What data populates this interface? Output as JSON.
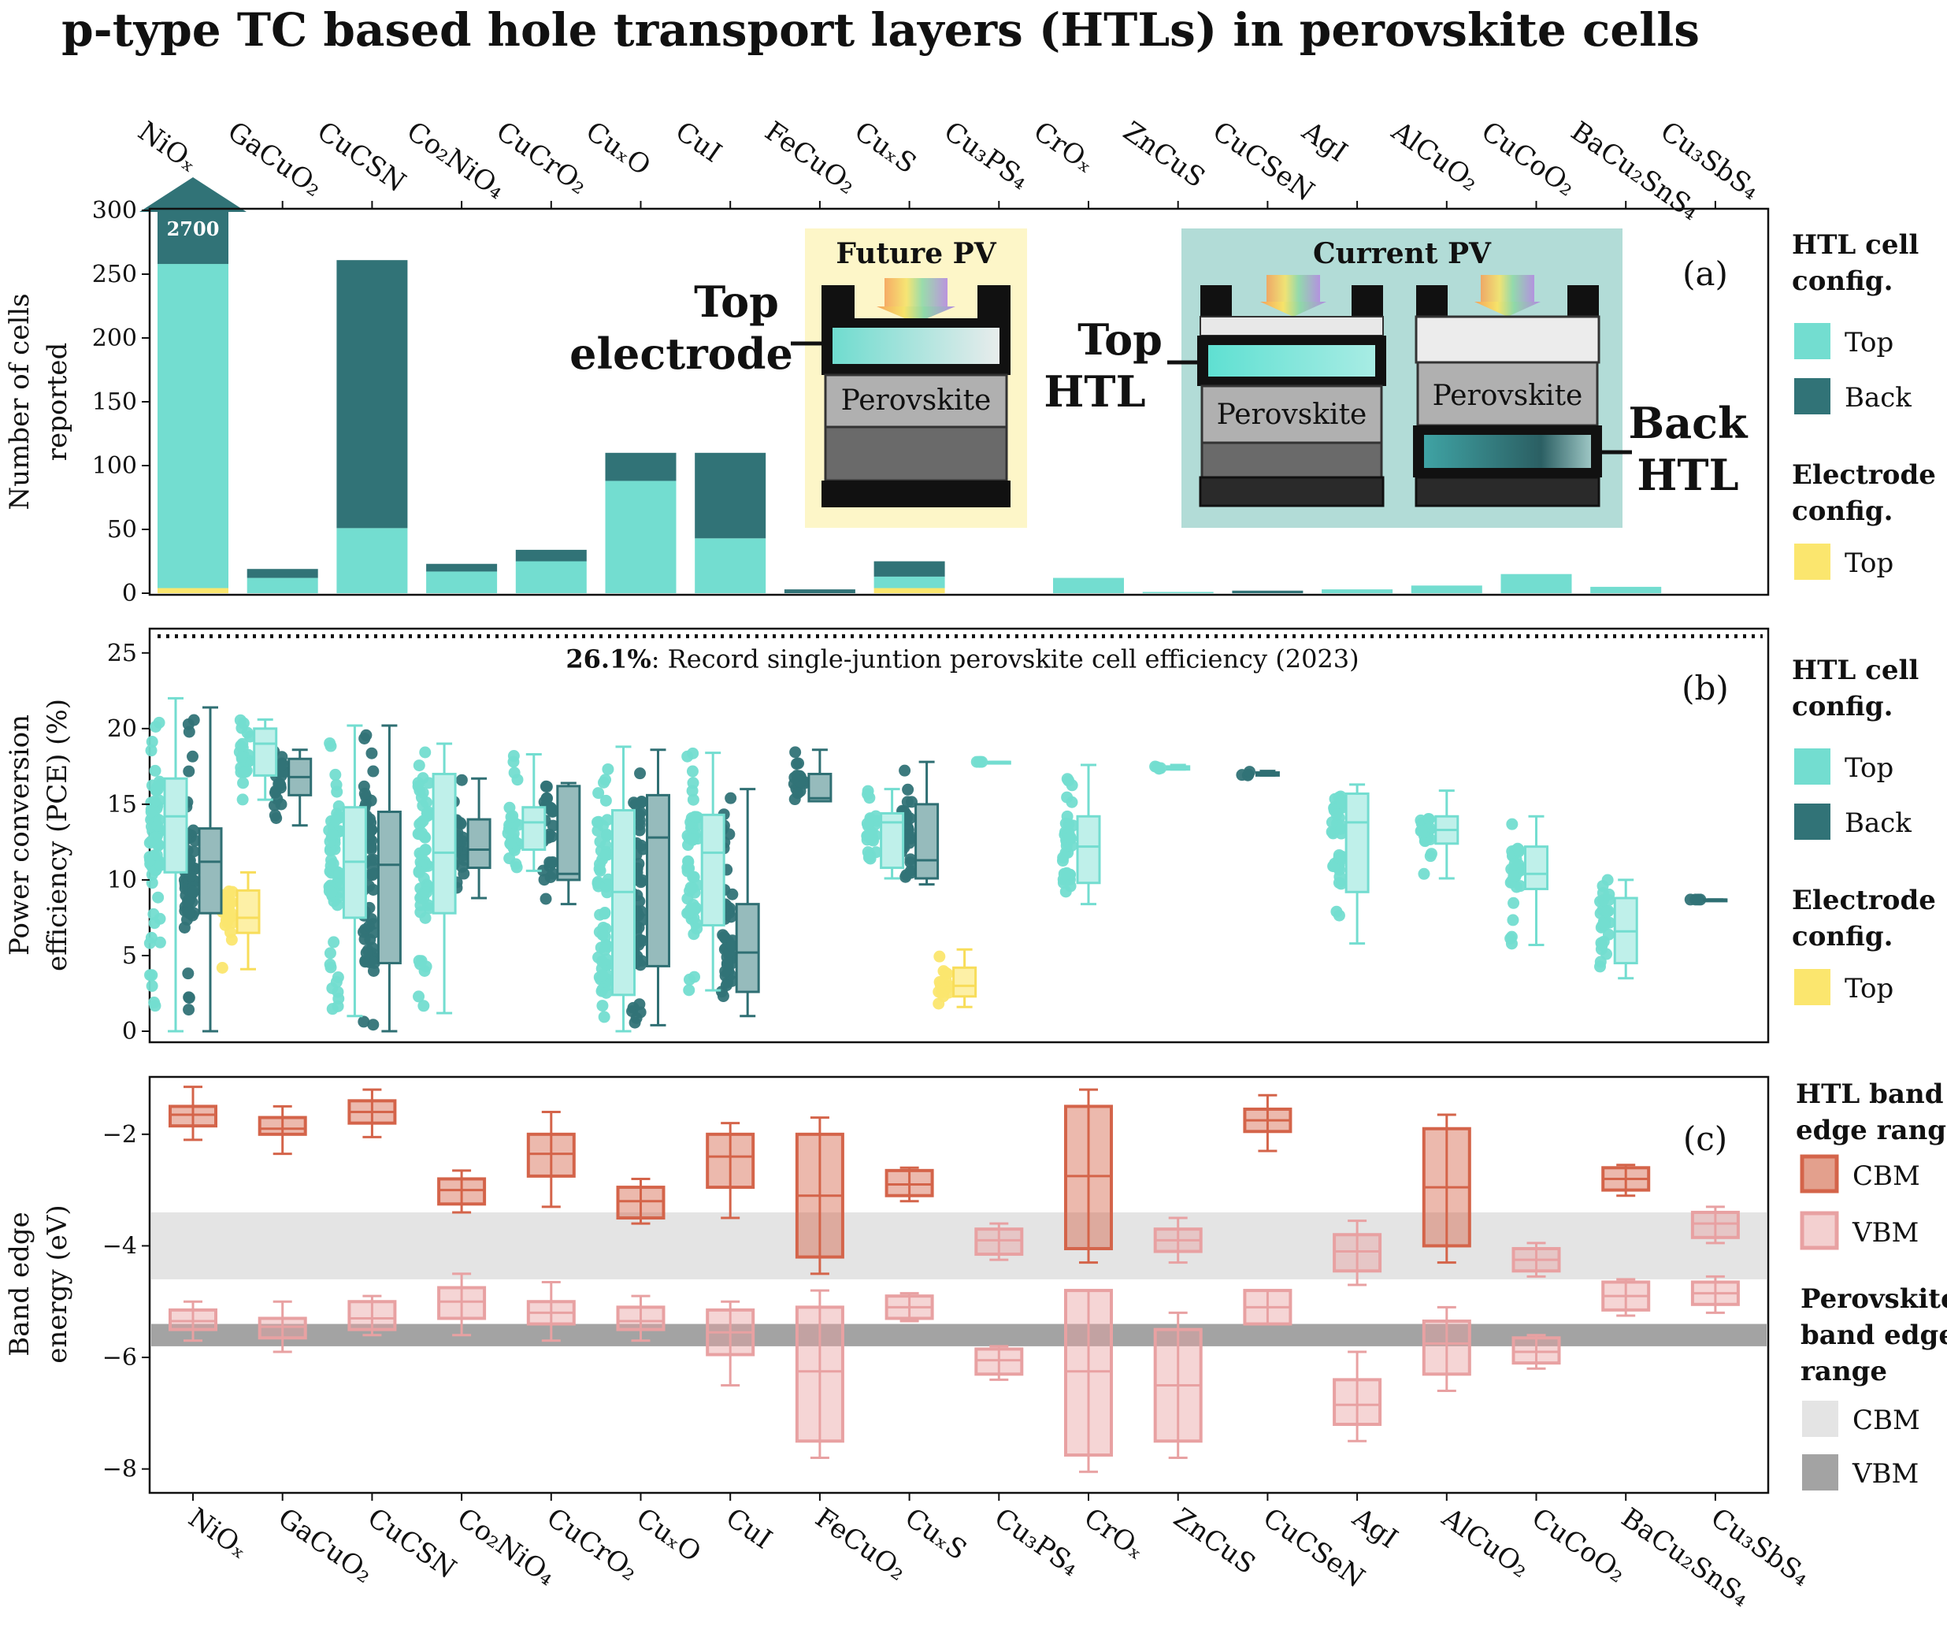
{
  "title": "p-type TC based hole transport layers (HTLs) in perovskite cells",
  "colors": {
    "top": "#73ddd0",
    "back": "#317377",
    "electrode": "#fbe66e",
    "cbm": "#d4644a",
    "vbm": "#e8a1a2",
    "perov_cbm": "#e4e4e4",
    "perov_vbm": "#a3a3a3",
    "future_bg": "#fdf6c8",
    "current_bg": "#b2dcd7"
  },
  "categories": [
    "NiOₓ",
    "GaCuO₂",
    "CuCSN",
    "Co₂NiO₄",
    "CuCrO₂",
    "CuₓO",
    "CuI",
    "FeCuO₂",
    "CuₓS",
    "Cu₃PS₄",
    "CrOₓ",
    "ZnCuS",
    "CuCSeN",
    "AgI",
    "AlCuO₂",
    "CuCoO₂",
    "BaCu₂SnS₄",
    "Cu₃SbS₄"
  ],
  "legends": {
    "a": {
      "htl_title_1": "HTL cell",
      "htl_title_2": "config.",
      "top": "Top",
      "back": "Back",
      "elec_title_1": "Electrode",
      "elec_title_2": "config.",
      "elec_top": "Top"
    },
    "b": {
      "htl_title_1": "HTL cell",
      "htl_title_2": "config.",
      "top": "Top",
      "back": "Back",
      "elec_title_1": "Electrode",
      "elec_title_2": "config.",
      "elec_top": "Top"
    },
    "c": {
      "htl_title_1": "HTL band",
      "htl_title_2": "edge range",
      "cbm": "CBM",
      "vbm": "VBM",
      "pero_title_1": "Perovskite",
      "pero_title_2": "band edge",
      "pero_title_3": "range",
      "pcbm": "CBM",
      "pvbm": "VBM"
    }
  },
  "inset": {
    "future": "Future PV",
    "current": "Current PV",
    "perovskite": "Perovskite",
    "top_electrode_1": "Top",
    "top_electrode_2": "electrode",
    "top_htl_1": "Top",
    "top_htl_2": "HTL",
    "back_htl_1": "Back",
    "back_htl_2": "HTL"
  },
  "chart_data": [
    {
      "panel": "(a)",
      "type": "bar",
      "stacked": true,
      "ylabel_1": "Number of cells",
      "ylabel_2": "reported",
      "ylim": [
        0,
        300
      ],
      "yticks": [
        "0",
        "50",
        "100",
        "150",
        "200",
        "250",
        "300"
      ],
      "arrow_label": "2700",
      "series": [
        {
          "name": "Electrode Top",
          "values": [
            4,
            0,
            0,
            0,
            0,
            0,
            0,
            0,
            4,
            0,
            0,
            0,
            0,
            0,
            0,
            0,
            0,
            0
          ]
        },
        {
          "name": "HTL Top",
          "values": [
            254,
            12,
            51,
            17,
            25,
            88,
            43,
            0,
            9,
            0,
            12,
            1,
            0,
            3,
            6,
            15,
            5,
            0
          ]
        },
        {
          "name": "HTL Back",
          "values": [
            42,
            7,
            210,
            6,
            9,
            22,
            67,
            3,
            12,
            0,
            0,
            0,
            2,
            0,
            0,
            0,
            0,
            0
          ]
        }
      ]
    },
    {
      "panel": "(b)",
      "type": "box",
      "ylabel_1": "Power conversion",
      "ylabel_2": "efficiency (PCE) (%)",
      "ylim": [
        0,
        26.5
      ],
      "yticks": [
        "0",
        "5",
        "10",
        "15",
        "20",
        "25"
      ],
      "record_value": 26.1,
      "record_label_bold": "26.1%",
      "record_label": ": Record single-juntion perovskite cell efficiency (2023)",
      "boxes": [
        {
          "cat": 0,
          "group": "top",
          "whisker": [
            0,
            22
          ],
          "q1": 10.5,
          "median": 14.2,
          "q3": 16.7
        },
        {
          "cat": 0,
          "group": "back",
          "whisker": [
            0,
            21.4
          ],
          "q1": 7.8,
          "median": 11.2,
          "q3": 13.4
        },
        {
          "cat": 0,
          "group": "electrode",
          "whisker": [
            4.1,
            10.5
          ],
          "q1": 6.5,
          "median": 7.5,
          "q3": 9.3
        },
        {
          "cat": 1,
          "group": "top",
          "whisker": [
            15.3,
            20.6
          ],
          "q1": 16.9,
          "median": 19.0,
          "q3": 20.0
        },
        {
          "cat": 1,
          "group": "back",
          "whisker": [
            13.6,
            18.6
          ],
          "q1": 15.6,
          "median": 16.8,
          "q3": 18.0
        },
        {
          "cat": 2,
          "group": "top",
          "whisker": [
            1,
            20.2
          ],
          "q1": 7.5,
          "median": 11.2,
          "q3": 14.8
        },
        {
          "cat": 2,
          "group": "back",
          "whisker": [
            0,
            20.2
          ],
          "q1": 4.5,
          "median": 11.0,
          "q3": 14.5
        },
        {
          "cat": 3,
          "group": "top",
          "whisker": [
            1.2,
            19.0
          ],
          "q1": 7.8,
          "median": 11.8,
          "q3": 17.0
        },
        {
          "cat": 3,
          "group": "back",
          "whisker": [
            8.8,
            16.7
          ],
          "q1": 10.8,
          "median": 12.0,
          "q3": 14.0
        },
        {
          "cat": 4,
          "group": "top",
          "whisker": [
            10.6,
            18.3
          ],
          "q1": 12.0,
          "median": 13.8,
          "q3": 14.8
        },
        {
          "cat": 4,
          "group": "back",
          "whisker": [
            8.4,
            16.4
          ],
          "q1": 10.0,
          "median": 10.4,
          "q3": 16.2
        },
        {
          "cat": 5,
          "group": "top",
          "whisker": [
            0,
            18.8
          ],
          "q1": 2.4,
          "median": 9.2,
          "q3": 14.6
        },
        {
          "cat": 5,
          "group": "back",
          "whisker": [
            0.4,
            18.6
          ],
          "q1": 4.3,
          "median": 12.8,
          "q3": 15.6
        },
        {
          "cat": 6,
          "group": "top",
          "whisker": [
            2.7,
            18.4
          ],
          "q1": 7.0,
          "median": 11.8,
          "q3": 14.3
        },
        {
          "cat": 6,
          "group": "back",
          "whisker": [
            1.0,
            16.0
          ],
          "q1": 2.6,
          "median": 5.2,
          "q3": 8.4
        },
        {
          "cat": 7,
          "group": "back",
          "whisker": [
            15.2,
            18.6
          ],
          "q1": 15.2,
          "median": 15.4,
          "q3": 17.0
        },
        {
          "cat": 8,
          "group": "top",
          "whisker": [
            10.1,
            16.0
          ],
          "q1": 10.8,
          "median": 13.8,
          "q3": 14.4
        },
        {
          "cat": 8,
          "group": "back",
          "whisker": [
            9.7,
            17.8
          ],
          "q1": 10.1,
          "median": 11.3,
          "q3": 15.0
        },
        {
          "cat": 8,
          "group": "electrode",
          "whisker": [
            1.6,
            5.4
          ],
          "q1": 2.3,
          "median": 3.0,
          "q3": 4.2
        },
        {
          "cat": 9,
          "group": "top",
          "whisker": [
            17.8,
            17.8
          ],
          "q1": 17.8,
          "median": 17.8,
          "q3": 17.8
        },
        {
          "cat": 10,
          "group": "top",
          "whisker": [
            8.4,
            17.6
          ],
          "q1": 9.8,
          "median": 12.2,
          "q3": 14.2
        },
        {
          "cat": 11,
          "group": "top",
          "whisker": [
            17.3,
            17.6
          ],
          "q1": 17.3,
          "median": 17.4,
          "q3": 17.5
        },
        {
          "cat": 12,
          "group": "back",
          "whisker": [
            16.9,
            17.2
          ],
          "q1": 16.9,
          "median": 17.0,
          "q3": 17.1
        },
        {
          "cat": 13,
          "group": "top",
          "whisker": [
            5.8,
            16.3
          ],
          "q1": 9.2,
          "median": 13.8,
          "q3": 15.7
        },
        {
          "cat": 14,
          "group": "top",
          "whisker": [
            10.1,
            15.9
          ],
          "q1": 12.4,
          "median": 13.3,
          "q3": 14.2
        },
        {
          "cat": 15,
          "group": "top",
          "whisker": [
            5.7,
            14.2
          ],
          "q1": 9.4,
          "median": 10.4,
          "q3": 12.2
        },
        {
          "cat": 16,
          "group": "top",
          "whisker": [
            3.5,
            10.0
          ],
          "q1": 4.5,
          "median": 6.6,
          "q3": 8.8
        },
        {
          "cat": 17,
          "group": "back",
          "whisker": [
            8.7,
            8.7
          ],
          "q1": 8.7,
          "median": 8.7,
          "q3": 8.7
        }
      ]
    },
    {
      "panel": "(c)",
      "type": "box",
      "ylabel_1": "Band edge",
      "ylabel_2": "energy (eV)",
      "ylim": [
        -8.4,
        -1.0
      ],
      "yticks": [
        "−2",
        "−4",
        "−6",
        "−8"
      ],
      "perovskite_cbm_range": [
        -4.6,
        -3.4
      ],
      "perovskite_vbm_range": [
        -5.8,
        -5.4
      ],
      "cbm": [
        {
          "cat": 0,
          "whisker": [
            -2.1,
            -1.15
          ],
          "q1": -1.85,
          "median": -1.65,
          "q3": -1.5
        },
        {
          "cat": 1,
          "whisker": [
            -2.35,
            -1.5
          ],
          "q1": -2.0,
          "median": -1.9,
          "q3": -1.7
        },
        {
          "cat": 2,
          "whisker": [
            -2.05,
            -1.2
          ],
          "q1": -1.8,
          "median": -1.6,
          "q3": -1.4
        },
        {
          "cat": 3,
          "whisker": [
            -3.4,
            -2.65
          ],
          "q1": -3.25,
          "median": -3.0,
          "q3": -2.8
        },
        {
          "cat": 4,
          "whisker": [
            -3.3,
            -1.6
          ],
          "q1": -2.75,
          "median": -2.35,
          "q3": -2.0
        },
        {
          "cat": 5,
          "whisker": [
            -3.6,
            -2.8
          ],
          "q1": -3.5,
          "median": -3.2,
          "q3": -2.95
        },
        {
          "cat": 6,
          "whisker": [
            -3.5,
            -1.8
          ],
          "q1": -2.95,
          "median": -2.4,
          "q3": -2.0
        },
        {
          "cat": 7,
          "whisker": [
            -4.5,
            -1.7
          ],
          "q1": -4.2,
          "median": -3.1,
          "q3": -2.0
        },
        {
          "cat": 8,
          "whisker": [
            -3.2,
            -2.6
          ],
          "q1": -3.1,
          "median": -2.9,
          "q3": -2.65
        },
        {
          "cat": 10,
          "whisker": [
            -4.3,
            -1.2
          ],
          "q1": -4.05,
          "median": -2.75,
          "q3": -1.5
        },
        {
          "cat": 12,
          "whisker": [
            -2.3,
            -1.3
          ],
          "q1": -1.95,
          "median": -1.75,
          "q3": -1.55
        },
        {
          "cat": 14,
          "whisker": [
            -4.3,
            -1.65
          ],
          "q1": -4.0,
          "median": -2.95,
          "q3": -1.9
        },
        {
          "cat": 16,
          "whisker": [
            -3.1,
            -2.55
          ],
          "q1": -3.0,
          "median": -2.8,
          "q3": -2.6
        }
      ],
      "vbm": [
        {
          "cat": 0,
          "whisker": [
            -5.7,
            -5.0
          ],
          "q1": -5.5,
          "median": -5.35,
          "q3": -5.15
        },
        {
          "cat": 1,
          "whisker": [
            -5.9,
            -5.0
          ],
          "q1": -5.65,
          "median": -5.45,
          "q3": -5.3
        },
        {
          "cat": 2,
          "whisker": [
            -5.6,
            -4.9
          ],
          "q1": -5.5,
          "median": -5.3,
          "q3": -5.0
        },
        {
          "cat": 3,
          "whisker": [
            -5.6,
            -4.5
          ],
          "q1": -5.3,
          "median": -5.0,
          "q3": -4.75
        },
        {
          "cat": 4,
          "whisker": [
            -5.7,
            -4.65
          ],
          "q1": -5.4,
          "median": -5.2,
          "q3": -5.0
        },
        {
          "cat": 5,
          "whisker": [
            -5.7,
            -4.9
          ],
          "q1": -5.5,
          "median": -5.35,
          "q3": -5.1
        },
        {
          "cat": 6,
          "whisker": [
            -6.5,
            -5.0
          ],
          "q1": -5.95,
          "median": -5.55,
          "q3": -5.15
        },
        {
          "cat": 7,
          "whisker": [
            -7.8,
            -4.8
          ],
          "q1": -7.5,
          "median": -6.25,
          "q3": -5.1
        },
        {
          "cat": 8,
          "whisker": [
            -5.35,
            -4.85
          ],
          "q1": -5.3,
          "median": -5.1,
          "q3": -4.9
        },
        {
          "cat": 9,
          "whisker": [
            -6.4,
            -5.8
          ],
          "q1": -6.3,
          "median": -6.05,
          "q3": -5.85
        },
        {
          "cat": 9,
          "whisker": [
            -4.25,
            -3.6
          ],
          "q1": -4.15,
          "median": -3.9,
          "q3": -3.7
        },
        {
          "cat": 10,
          "whisker": [
            -8.05,
            -4.8
          ],
          "q1": -7.75,
          "median": -6.25,
          "q3": -4.8
        },
        {
          "cat": 11,
          "whisker": [
            -7.8,
            -5.2
          ],
          "q1": -7.5,
          "median": -6.5,
          "q3": -5.5
        },
        {
          "cat": 11,
          "whisker": [
            -4.3,
            -3.5
          ],
          "q1": -4.1,
          "median": -3.9,
          "q3": -3.7
        },
        {
          "cat": 12,
          "whisker": [
            -5.4,
            -4.8
          ],
          "q1": -5.4,
          "median": -5.1,
          "q3": -4.8
        },
        {
          "cat": 13,
          "whisker": [
            -7.5,
            -5.9
          ],
          "q1": -7.2,
          "median": -6.85,
          "q3": -6.4
        },
        {
          "cat": 13,
          "whisker": [
            -4.7,
            -3.55
          ],
          "q1": -4.45,
          "median": -4.1,
          "q3": -3.8
        },
        {
          "cat": 14,
          "whisker": [
            -6.6,
            -5.1
          ],
          "q1": -6.3,
          "median": -5.75,
          "q3": -5.35
        },
        {
          "cat": 15,
          "whisker": [
            -6.2,
            -5.6
          ],
          "q1": -6.1,
          "median": -5.9,
          "q3": -5.65
        },
        {
          "cat": 15,
          "whisker": [
            -4.55,
            -3.95
          ],
          "q1": -4.45,
          "median": -4.25,
          "q3": -4.05
        },
        {
          "cat": 16,
          "whisker": [
            -5.25,
            -4.6
          ],
          "q1": -5.15,
          "median": -4.9,
          "q3": -4.65
        },
        {
          "cat": 17,
          "whisker": [
            -5.2,
            -4.55
          ],
          "q1": -5.05,
          "median": -4.85,
          "q3": -4.65
        },
        {
          "cat": 17,
          "whisker": [
            -3.95,
            -3.3
          ],
          "q1": -3.85,
          "median": -3.6,
          "q3": -3.4
        }
      ]
    }
  ]
}
